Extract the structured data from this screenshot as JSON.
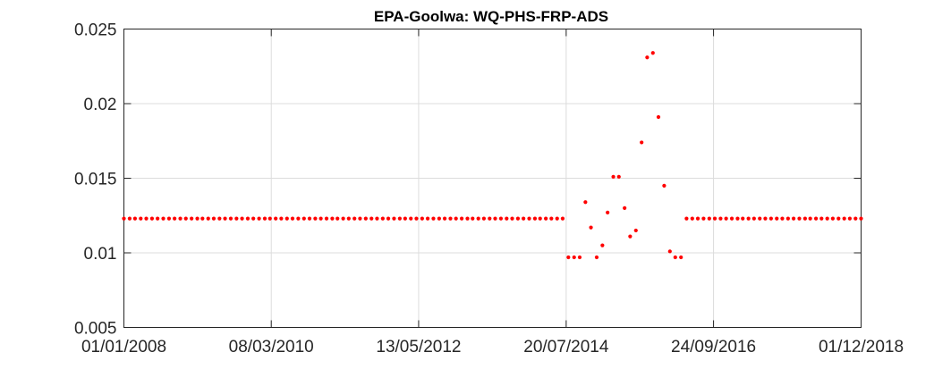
{
  "chart_data": {
    "type": "scatter",
    "title": "EPA-Goolwa: WQ-PHS-FRP-ADS",
    "xlabel": "",
    "ylabel": "",
    "x_axis": "date",
    "xlim": [
      "2008-01-01",
      "2018-12-01"
    ],
    "ylim": [
      0.005,
      0.025
    ],
    "xticks": [
      "2008-01-01",
      "2010-03-08",
      "2012-05-13",
      "2014-07-20",
      "2016-09-24",
      "2018-12-01"
    ],
    "xtick_labels": [
      "01/01/2008",
      "08/03/2010",
      "13/05/2012",
      "20/07/2014",
      "24/09/2016",
      "01/12/2018"
    ],
    "yticks": [
      0.005,
      0.01,
      0.015,
      0.02,
      0.025
    ],
    "ytick_labels": [
      "0.005",
      "0.01",
      "0.015",
      "0.02",
      "0.025"
    ],
    "grid": true,
    "marker_color": "#ff0000",
    "series": [
      {
        "points": [
          [
            "2008-01-01",
            0.0123
          ],
          [
            "2008-02-01",
            0.0123
          ],
          [
            "2008-03-01",
            0.0123
          ],
          [
            "2008-04-01",
            0.0123
          ],
          [
            "2008-05-01",
            0.0123
          ],
          [
            "2008-06-01",
            0.0123
          ],
          [
            "2008-07-01",
            0.0123
          ],
          [
            "2008-08-01",
            0.0123
          ],
          [
            "2008-09-01",
            0.0123
          ],
          [
            "2008-10-01",
            0.0123
          ],
          [
            "2008-11-01",
            0.0123
          ],
          [
            "2008-12-01",
            0.0123
          ],
          [
            "2009-01-01",
            0.0123
          ],
          [
            "2009-02-01",
            0.0123
          ],
          [
            "2009-03-01",
            0.0123
          ],
          [
            "2009-04-01",
            0.0123
          ],
          [
            "2009-05-01",
            0.0123
          ],
          [
            "2009-06-01",
            0.0123
          ],
          [
            "2009-07-01",
            0.0123
          ],
          [
            "2009-08-01",
            0.0123
          ],
          [
            "2009-09-01",
            0.0123
          ],
          [
            "2009-10-01",
            0.0123
          ],
          [
            "2009-11-01",
            0.0123
          ],
          [
            "2009-12-01",
            0.0123
          ],
          [
            "2010-01-01",
            0.0123
          ],
          [
            "2010-02-01",
            0.0123
          ],
          [
            "2010-03-01",
            0.0123
          ],
          [
            "2010-04-01",
            0.0123
          ],
          [
            "2010-05-01",
            0.0123
          ],
          [
            "2010-06-01",
            0.0123
          ],
          [
            "2010-07-01",
            0.0123
          ],
          [
            "2010-08-01",
            0.0123
          ],
          [
            "2010-09-01",
            0.0123
          ],
          [
            "2010-10-01",
            0.0123
          ],
          [
            "2010-11-01",
            0.0123
          ],
          [
            "2010-12-01",
            0.0123
          ],
          [
            "2011-01-01",
            0.0123
          ],
          [
            "2011-02-01",
            0.0123
          ],
          [
            "2011-03-01",
            0.0123
          ],
          [
            "2011-04-01",
            0.0123
          ],
          [
            "2011-05-01",
            0.0123
          ],
          [
            "2011-06-01",
            0.0123
          ],
          [
            "2011-07-01",
            0.0123
          ],
          [
            "2011-08-01",
            0.0123
          ],
          [
            "2011-09-01",
            0.0123
          ],
          [
            "2011-10-01",
            0.0123
          ],
          [
            "2011-11-01",
            0.0123
          ],
          [
            "2011-12-01",
            0.0123
          ],
          [
            "2012-01-01",
            0.0123
          ],
          [
            "2012-02-01",
            0.0123
          ],
          [
            "2012-03-01",
            0.0123
          ],
          [
            "2012-04-01",
            0.0123
          ],
          [
            "2012-05-01",
            0.0123
          ],
          [
            "2012-06-01",
            0.0123
          ],
          [
            "2012-07-01",
            0.0123
          ],
          [
            "2012-08-01",
            0.0123
          ],
          [
            "2012-09-01",
            0.0123
          ],
          [
            "2012-10-01",
            0.0123
          ],
          [
            "2012-11-01",
            0.0123
          ],
          [
            "2012-12-01",
            0.0123
          ],
          [
            "2013-01-01",
            0.0123
          ],
          [
            "2013-02-01",
            0.0123
          ],
          [
            "2013-03-01",
            0.0123
          ],
          [
            "2013-04-01",
            0.0123
          ],
          [
            "2013-05-01",
            0.0123
          ],
          [
            "2013-06-01",
            0.0123
          ],
          [
            "2013-07-01",
            0.0123
          ],
          [
            "2013-08-01",
            0.0123
          ],
          [
            "2013-09-01",
            0.0123
          ],
          [
            "2013-10-01",
            0.0123
          ],
          [
            "2013-11-01",
            0.0123
          ],
          [
            "2013-12-01",
            0.0123
          ],
          [
            "2014-01-01",
            0.0123
          ],
          [
            "2014-02-01",
            0.0123
          ],
          [
            "2014-03-01",
            0.0123
          ],
          [
            "2014-04-01",
            0.0123
          ],
          [
            "2014-05-01",
            0.0123
          ],
          [
            "2014-06-01",
            0.0123
          ],
          [
            "2014-07-01",
            0.0123
          ],
          [
            "2014-08-01",
            0.0097
          ],
          [
            "2014-09-01",
            0.0097
          ],
          [
            "2014-10-01",
            0.0097
          ],
          [
            "2014-11-01",
            0.0134
          ],
          [
            "2014-12-01",
            0.0117
          ],
          [
            "2015-01-01",
            0.0097
          ],
          [
            "2015-02-01",
            0.0105
          ],
          [
            "2015-03-01",
            0.0127
          ],
          [
            "2015-04-01",
            0.0151
          ],
          [
            "2015-05-01",
            0.0151
          ],
          [
            "2015-06-01",
            0.013
          ],
          [
            "2015-07-01",
            0.0111
          ],
          [
            "2015-08-01",
            0.0115
          ],
          [
            "2015-09-01",
            0.0174
          ],
          [
            "2015-10-01",
            0.0231
          ],
          [
            "2015-11-01",
            0.0234
          ],
          [
            "2015-12-01",
            0.0191
          ],
          [
            "2016-01-01",
            0.0145
          ],
          [
            "2016-02-01",
            0.0101
          ],
          [
            "2016-03-01",
            0.0097
          ],
          [
            "2016-04-01",
            0.0097
          ],
          [
            "2016-05-01",
            0.0123
          ],
          [
            "2016-06-01",
            0.0123
          ],
          [
            "2016-07-01",
            0.0123
          ],
          [
            "2016-08-01",
            0.0123
          ],
          [
            "2016-09-01",
            0.0123
          ],
          [
            "2016-10-01",
            0.0123
          ],
          [
            "2016-11-01",
            0.0123
          ],
          [
            "2016-12-01",
            0.0123
          ],
          [
            "2017-01-01",
            0.0123
          ],
          [
            "2017-02-01",
            0.0123
          ],
          [
            "2017-03-01",
            0.0123
          ],
          [
            "2017-04-01",
            0.0123
          ],
          [
            "2017-05-01",
            0.0123
          ],
          [
            "2017-06-01",
            0.0123
          ],
          [
            "2017-07-01",
            0.0123
          ],
          [
            "2017-08-01",
            0.0123
          ],
          [
            "2017-09-01",
            0.0123
          ],
          [
            "2017-10-01",
            0.0123
          ],
          [
            "2017-11-01",
            0.0123
          ],
          [
            "2017-12-01",
            0.0123
          ],
          [
            "2018-01-01",
            0.0123
          ],
          [
            "2018-02-01",
            0.0123
          ],
          [
            "2018-03-01",
            0.0123
          ],
          [
            "2018-04-01",
            0.0123
          ],
          [
            "2018-05-01",
            0.0123
          ],
          [
            "2018-06-01",
            0.0123
          ],
          [
            "2018-07-01",
            0.0123
          ],
          [
            "2018-08-01",
            0.0123
          ],
          [
            "2018-09-01",
            0.0123
          ],
          [
            "2018-10-01",
            0.0123
          ],
          [
            "2018-11-01",
            0.0123
          ],
          [
            "2018-12-01",
            0.0123
          ]
        ]
      }
    ]
  }
}
